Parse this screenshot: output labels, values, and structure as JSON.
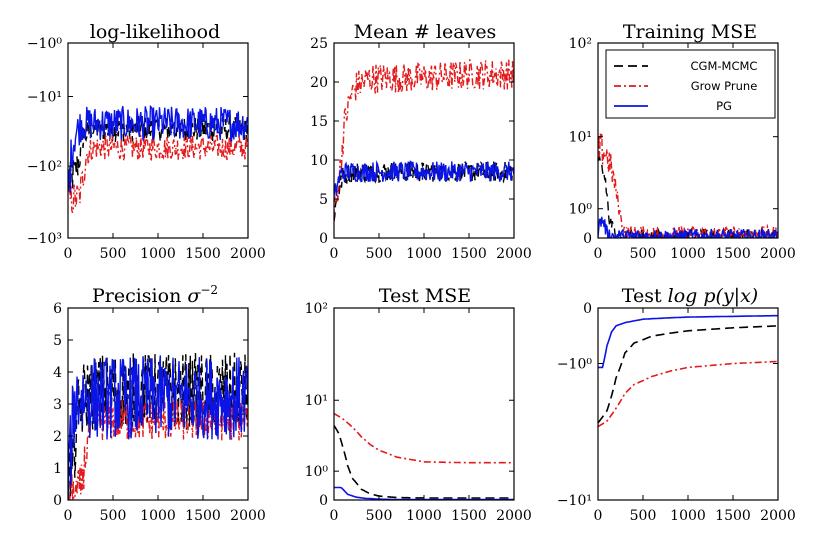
{
  "colors": {
    "CGM-MCMC": "#000000",
    "Grow Prune": "#e41a1c",
    "PG": "#0a14e6"
  },
  "chart_data": [
    {
      "id": "loglik",
      "type": "line",
      "title": "log-likelihood",
      "xlabel": "",
      "ylabel": "",
      "xlim": [
        0,
        2000
      ],
      "yscale": "symlog-negative",
      "ylim": [
        -1000,
        -1
      ],
      "xticks": [
        "0",
        "500",
        "1000",
        "1500",
        "2000"
      ],
      "xtick_values": [
        0,
        500,
        1000,
        1500,
        2000
      ],
      "yticks": [
        "−10⁰",
        "−10¹",
        "−10²",
        "−10³"
      ],
      "ytick_values": [
        -1,
        -10,
        -100,
        -1000
      ],
      "series": [
        {
          "name": "CGM-MCMC",
          "style": "dashed",
          "noisy": true,
          "x": [
            0,
            60,
            110,
            160,
            250,
            500,
            1000,
            1500,
            2000
          ],
          "y": [
            -180,
            -130,
            -95,
            -40,
            -30,
            -30,
            -30,
            -30,
            -30
          ],
          "noise": 0.12
        },
        {
          "name": "Grow Prune",
          "style": "dashdot",
          "noisy": true,
          "x": [
            0,
            120,
            150,
            200,
            280,
            500,
            1000,
            1500,
            2000
          ],
          "y": [
            -300,
            -280,
            -180,
            -70,
            -55,
            -55,
            -55,
            -55,
            -55
          ],
          "noise": 0.1
        },
        {
          "name": "PG",
          "style": "solid",
          "noisy": true,
          "x": [
            0,
            40,
            80,
            150,
            300,
            1000,
            2000
          ],
          "y": [
            -200,
            -60,
            -35,
            -25,
            -25,
            -25,
            -25
          ],
          "noise": 0.17
        }
      ]
    },
    {
      "id": "leaves",
      "type": "line",
      "title": "Mean # leaves",
      "xlabel": "",
      "ylabel": "",
      "xlim": [
        0,
        2000
      ],
      "yscale": "linear",
      "ylim": [
        0,
        25
      ],
      "xticks": [
        "0",
        "500",
        "1000",
        "1500",
        "2000"
      ],
      "xtick_values": [
        0,
        500,
        1000,
        1500,
        2000
      ],
      "yticks": [
        "0",
        "5",
        "10",
        "15",
        "20",
        "25"
      ],
      "ytick_values": [
        0,
        5,
        10,
        15,
        20,
        25
      ],
      "series": [
        {
          "name": "CGM-MCMC",
          "style": "dashed",
          "noisy": true,
          "x": [
            0,
            50,
            100,
            200,
            500,
            1000,
            2000
          ],
          "y": [
            3,
            6,
            8,
            8.5,
            8.5,
            8.5,
            8.5
          ],
          "noise": 0.6
        },
        {
          "name": "Grow Prune",
          "style": "dashdot",
          "noisy": true,
          "x": [
            0,
            60,
            120,
            180,
            250,
            400,
            1000,
            1500,
            2000
          ],
          "y": [
            3,
            8,
            15,
            18,
            19.5,
            20.5,
            20.5,
            21,
            21
          ],
          "noise": 0.9
        },
        {
          "name": "PG",
          "style": "solid",
          "noisy": true,
          "x": [
            0,
            40,
            80,
            150,
            2000
          ],
          "y": [
            5,
            7,
            8.3,
            8.5,
            8.5
          ],
          "noise": 0.6
        }
      ]
    },
    {
      "id": "trainmse",
      "type": "line",
      "title": "Training MSE",
      "xlabel": "",
      "ylabel": "",
      "xlim": [
        0,
        2000
      ],
      "yscale": "symlog",
      "ylim": [
        0,
        100
      ],
      "xticks": [
        "0",
        "500",
        "1000",
        "1500",
        "2000"
      ],
      "xtick_values": [
        0,
        500,
        1000,
        1500,
        2000
      ],
      "yticks": [
        "0",
        "10⁰",
        "10¹",
        "10²"
      ],
      "ytick_values": [
        0,
        1,
        10,
        100
      ],
      "legend": {
        "placement": "top-right",
        "entries": [
          "CGM-MCMC",
          "Grow Prune",
          "PG"
        ]
      },
      "series": [
        {
          "name": "CGM-MCMC",
          "style": "dashed",
          "noisy": true,
          "x": [
            0,
            40,
            80,
            120,
            200,
            300,
            2000
          ],
          "y": [
            4,
            4,
            3,
            0.5,
            0.05,
            0.03,
            0.03
          ],
          "noise": 0.2
        },
        {
          "name": "Grow Prune",
          "style": "dashdot",
          "noisy": true,
          "x": [
            0,
            50,
            100,
            150,
            200,
            250,
            300,
            500,
            2000
          ],
          "y": [
            7,
            7,
            6,
            4,
            2,
            0.6,
            0.12,
            0.1,
            0.1
          ],
          "noise": 0.2
        },
        {
          "name": "PG",
          "style": "solid",
          "noisy": true,
          "x": [
            0,
            30,
            60,
            100,
            150,
            300,
            2000
          ],
          "y": [
            0.2,
            0.5,
            0.5,
            0.1,
            0.04,
            0.03,
            0.03
          ],
          "noise": 0.2
        }
      ]
    },
    {
      "id": "precision",
      "type": "line",
      "title": "Precision σ⁻²",
      "xlabel": "",
      "ylabel": "",
      "xlim": [
        0,
        2000
      ],
      "yscale": "linear",
      "ylim": [
        0,
        6
      ],
      "xticks": [
        "0",
        "500",
        "1000",
        "1500",
        "2000"
      ],
      "xtick_values": [
        0,
        500,
        1000,
        1500,
        2000
      ],
      "yticks": [
        "0",
        "1",
        "2",
        "3",
        "4",
        "5",
        "6"
      ],
      "ytick_values": [
        0,
        1,
        2,
        3,
        4,
        5,
        6
      ],
      "series": [
        {
          "name": "CGM-MCMC",
          "style": "dashed",
          "noisy": true,
          "x": [
            0,
            40,
            80,
            120,
            200,
            400,
            2000
          ],
          "y": [
            0.8,
            1.2,
            1.8,
            2.8,
            3.3,
            3.4,
            3.4
          ],
          "noise": 0.55
        },
        {
          "name": "Grow Prune",
          "style": "dashdot",
          "noisy": true,
          "x": [
            0,
            100,
            150,
            200,
            250,
            300,
            500,
            2000
          ],
          "y": [
            0.2,
            0.2,
            0.5,
            1.5,
            2.3,
            2.5,
            2.5,
            2.5
          ],
          "noise": 0.3
        },
        {
          "name": "PG",
          "style": "solid",
          "noisy": true,
          "x": [
            0,
            30,
            60,
            100,
            200,
            2000
          ],
          "y": [
            0.6,
            1.5,
            2.8,
            3.2,
            3.2,
            3.2
          ],
          "noise": 0.6
        }
      ]
    },
    {
      "id": "testmse",
      "type": "line",
      "title": "Test MSE",
      "xlabel": "",
      "ylabel": "",
      "xlim": [
        0,
        2000
      ],
      "yscale": "symlog",
      "ylim": [
        0,
        100
      ],
      "xticks": [
        "0",
        "500",
        "1000",
        "1500",
        "2000"
      ],
      "xtick_values": [
        0,
        500,
        1000,
        1500,
        2000
      ],
      "yticks": [
        "0",
        "10⁰",
        "10¹",
        "10²"
      ],
      "ytick_values": [
        0,
        1,
        10,
        100
      ],
      "series": [
        {
          "name": "CGM-MCMC",
          "style": "dashed",
          "noisy": false,
          "x": [
            0,
            50,
            100,
            150,
            200,
            300,
            400,
            500,
            700,
            1000,
            1500,
            2000
          ],
          "y": [
            5,
            4,
            2.5,
            1.3,
            0.7,
            0.3,
            0.16,
            0.1,
            0.06,
            0.05,
            0.05,
            0.05
          ]
        },
        {
          "name": "Grow Prune",
          "style": "dashdot",
          "noisy": false,
          "x": [
            0,
            100,
            200,
            300,
            400,
            500,
            700,
            1000,
            1500,
            2000
          ],
          "y": [
            7,
            6,
            4.8,
            3.6,
            2.8,
            2.3,
            1.8,
            1.5,
            1.45,
            1.45
          ]
        },
        {
          "name": "PG",
          "style": "solid",
          "noisy": false,
          "x": [
            0,
            80,
            150,
            250,
            350,
            500,
            700,
            1000,
            2000
          ],
          "y": [
            0.35,
            0.35,
            0.15,
            0.07,
            0.04,
            0.02,
            0.01,
            0.01,
            0.01
          ]
        }
      ]
    },
    {
      "id": "testlogp",
      "type": "line",
      "title": "Test log p(y|x)",
      "xlabel": "",
      "ylabel": "",
      "xlim": [
        0,
        2000
      ],
      "yscale": "symlog-negative",
      "ylim": [
        -10,
        0
      ],
      "xticks": [
        "0",
        "500",
        "1000",
        "1500",
        "2000"
      ],
      "xtick_values": [
        0,
        500,
        1000,
        1500,
        2000
      ],
      "yticks": [
        "0",
        "−10⁰",
        "−10¹"
      ],
      "ytick_values": [
        0,
        -1,
        -10
      ],
      "series": [
        {
          "name": "CGM-MCMC",
          "style": "dashed",
          "noisy": false,
          "x": [
            0,
            100,
            200,
            300,
            400,
            600,
            800,
            1000,
            1500,
            2000
          ],
          "y": [
            -3.2,
            -2.6,
            -1.4,
            -0.75,
            -0.55,
            -0.42,
            -0.37,
            -0.33,
            -0.28,
            -0.25
          ]
        },
        {
          "name": "Grow Prune",
          "style": "dashdot",
          "noisy": false,
          "x": [
            0,
            100,
            200,
            300,
            400,
            600,
            800,
            1000,
            1500,
            2000
          ],
          "y": [
            -3.4,
            -3.1,
            -2.5,
            -1.9,
            -1.6,
            -1.35,
            -1.2,
            -1.1,
            -1.0,
            -0.95
          ]
        },
        {
          "name": "PG",
          "style": "solid",
          "noisy": false,
          "x": [
            0,
            50,
            100,
            150,
            200,
            300,
            500,
            800,
            1000,
            1500,
            2000
          ],
          "y": [
            -1.1,
            -1.1,
            -0.6,
            -0.35,
            -0.25,
            -0.2,
            -0.15,
            -0.13,
            -0.12,
            -0.11,
            -0.1
          ]
        }
      ]
    }
  ],
  "panel_titles": {
    "loglik": "log-likelihood",
    "leaves": "Mean # leaves",
    "trainmse": "Training MSE",
    "precision_main": "Precision ",
    "precision_math": "σ",
    "precision_sup": "−2",
    "testmse": "Test MSE",
    "testlogp_main": "Test ",
    "testlogp_math": "log p(y|x)"
  },
  "legend": [
    "CGM-MCMC",
    "Grow Prune",
    "PG"
  ]
}
